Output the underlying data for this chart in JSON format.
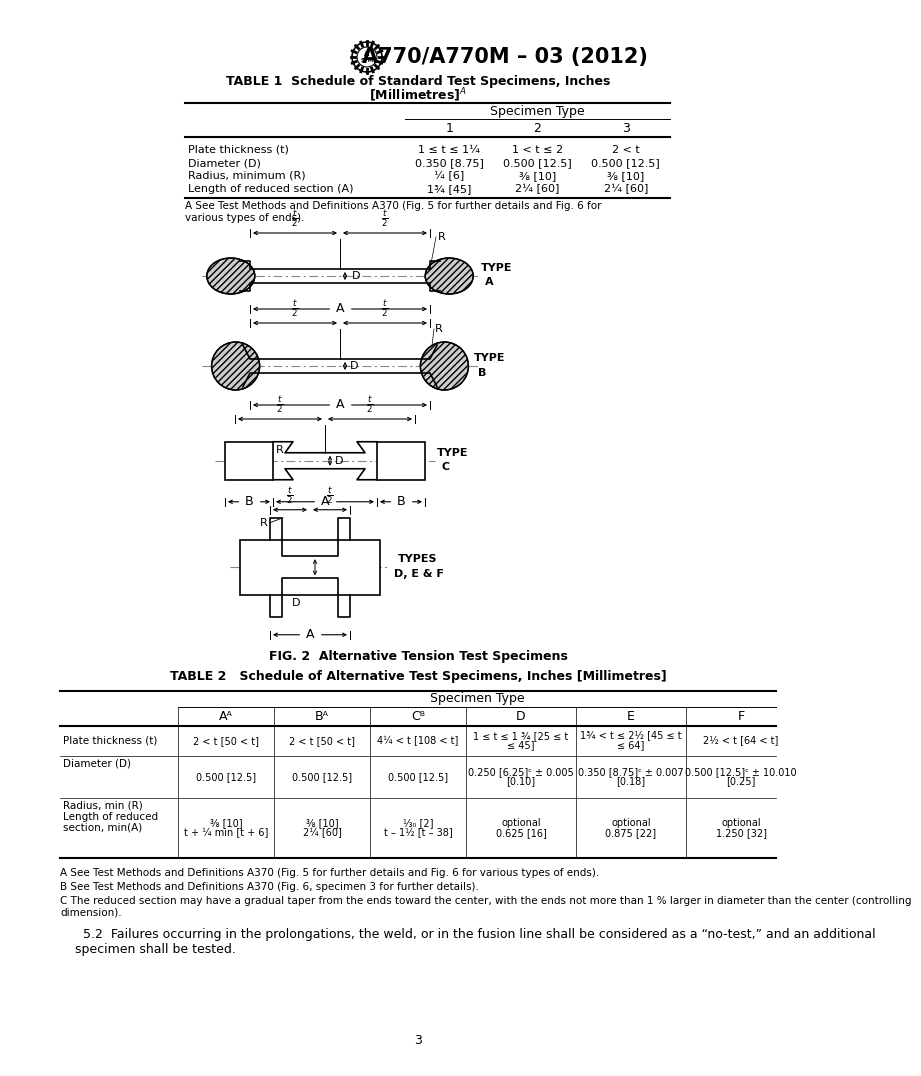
{
  "title": "A770/A770M – 03 (2012)",
  "page_bg": "#ffffff",
  "page_number": "3",
  "table1_title_line1": "TABLE 1  Schedule of Standard Test Specimens, Inches",
  "table1_title_line2": "[Millimetres]",
  "table1_note": "A See Test Methods and Definitions A370 (Fig. 5 for further details and Fig. 6 for\nvarious types of ends).",
  "table1_specimen_header": "Specimen Type",
  "table1_col_headers": [
    "1",
    "2",
    "3"
  ],
  "table1_rows": [
    [
      "Plate thickness (t)",
      "1 ≤ t ≤ 1¼",
      "1 < t ≤ 2",
      "2 < t"
    ],
    [
      "Diameter (D)",
      "0.350 [8.75]",
      "0.500 [12.5]",
      "0.500 [12.5]"
    ],
    [
      "Radius, minimum (R)",
      "¼ [6]",
      "⅜ [10]",
      "⅜ [10]"
    ],
    [
      "Length of reduced section (A)",
      "1¾ [45]",
      "2¼ [60]",
      "2¼ [60]"
    ]
  ],
  "fig2_caption": "FIG. 2  Alternative Tension Test Specimens",
  "table2_title": "TABLE 2   Schedule of Alternative Test Specimens, Inches [Millimetres]",
  "table2_col_headers": [
    "Aᴬ",
    "Bᴬ",
    "Cᴮ",
    "D",
    "E",
    "F"
  ],
  "table2_specimen_header": "Specimen Type",
  "table2_row0": [
    "Plate thickness (t)",
    "2 < t [50 < t]",
    "2 < t [50 < t]",
    "4¼ < t [108 < t]",
    "1 ≤ t ≤ 1 ¾ [25 ≤ t\n≤ 45]",
    "1¾ < t ≤ 2½ [45 ≤ t\n≤ 64]",
    "2½ < t [64 < t]"
  ],
  "table2_row1": [
    "Diameter (D)",
    "0.500 [12.5]",
    "0.500 [12.5]",
    "0.500 [12.5]",
    "0.250 [6.25]ᶜ ± 0.005\n[0.10]",
    "0.350 [8.75]ᶜ ± 0.007\n[0.18]",
    "0.500 [12.5]ᶜ ± 10.010\n[0.25]"
  ],
  "table2_row2_label": "Radius, min (R)\nLength of reduced\nsection, min(A)",
  "table2_row2_vals": [
    "⅜ [10]\nt + ¼ min [t + 6]",
    "⅜ [10]\n2¼ [60]",
    "⅓₀ [2]\nt – 1½ [t – 38]",
    "optional\n0.625 [16]",
    "optional\n0.875 [22]",
    "optional\n1.250 [32]"
  ],
  "table2_note_a": "A See Test Methods and Definitions A370 (Fig. 5 for further details and Fig. 6 for various types of ends).",
  "table2_note_b": "B See Test Methods and Definitions A370 (Fig. 6, specimen 3 for further details).",
  "table2_note_c": "C The reduced section may have a gradual taper from the ends toward the center, with the ends not more than 1 % larger in diameter than the center (controlling\ndimension).",
  "closing_text": "  5.2  Failures occurring in the prolongations, the weld, or in the fusion line shall be considered as a “no-test,” and an additional\nspecimen shall be tested."
}
